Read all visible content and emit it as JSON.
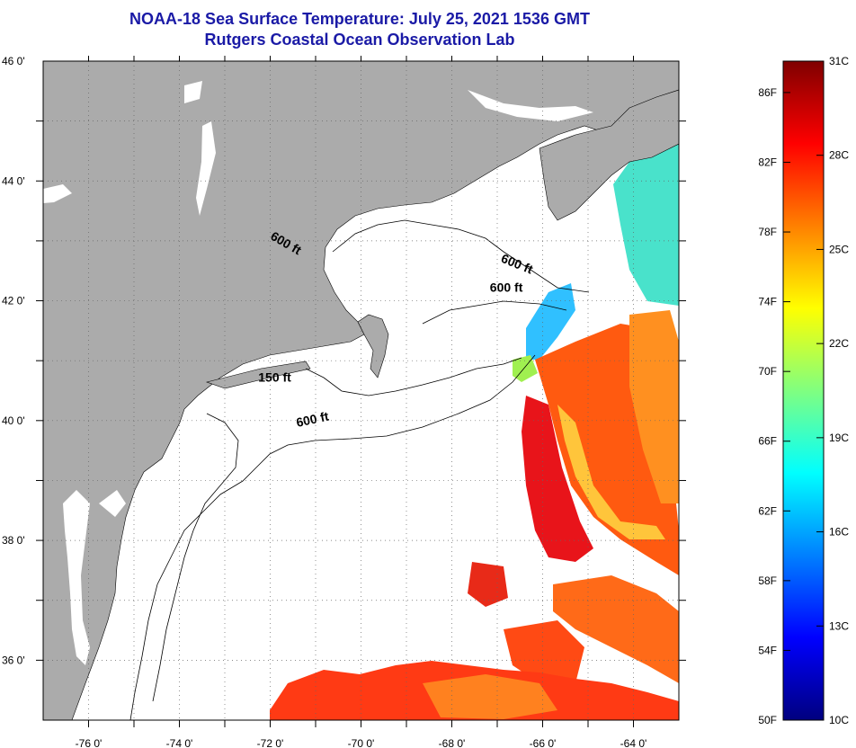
{
  "title": {
    "line1": "NOAA-18 Sea Surface Temperature:  July 25, 2021 1536 GMT",
    "line2": "Rutgers Coastal Ocean Observation Lab"
  },
  "map": {
    "lon_range": [
      -77,
      -63
    ],
    "lat_range": [
      35,
      46
    ],
    "lon_ticks": [
      {
        "value": -76,
        "label": "-76 0'"
      },
      {
        "value": -74,
        "label": "-74 0'"
      },
      {
        "value": -72,
        "label": "-72 0'"
      },
      {
        "value": -70,
        "label": "-70 0'"
      },
      {
        "value": -68,
        "label": "-68 0'"
      },
      {
        "value": -66,
        "label": "-66 0'"
      },
      {
        "value": -64,
        "label": "-64 0'"
      }
    ],
    "lat_ticks": [
      {
        "value": 46,
        "label": "46 0'"
      },
      {
        "value": 44,
        "label": "44 0'"
      },
      {
        "value": 42,
        "label": "42 0'"
      },
      {
        "value": 40,
        "label": "40 0'"
      },
      {
        "value": 38,
        "label": "38 0'"
      },
      {
        "value": 36,
        "label": "36 0'"
      }
    ],
    "isobath_labels": [
      {
        "text": "600 ft",
        "lon": -71.7,
        "lat": 42.9,
        "rotate": 30
      },
      {
        "text": "600 ft",
        "lon": -66.6,
        "lat": 42.55,
        "rotate": 22
      },
      {
        "text": "600 ft",
        "lon": -66.8,
        "lat": 42.15,
        "rotate": 0
      },
      {
        "text": "150 ft",
        "lon": -71.9,
        "lat": 40.65,
        "rotate": 0
      },
      {
        "text": "600 ft",
        "lon": -71.05,
        "lat": 39.95,
        "rotate": -12
      }
    ],
    "colors": {
      "land": "#ababab",
      "ocean": "#ffffff",
      "grid": "#555555"
    }
  },
  "colorbar": {
    "min_c": 10,
    "max_c": 31,
    "stops": [
      "#00007f",
      "#0000ff",
      "#0080ff",
      "#00ffff",
      "#80ff80",
      "#ffff00",
      "#ff8000",
      "#ff0000",
      "#7f0000"
    ],
    "celsius_labels": [
      {
        "value": 31,
        "label": "31C"
      },
      {
        "value": 28,
        "label": "28C"
      },
      {
        "value": 25,
        "label": "25C"
      },
      {
        "value": 22,
        "label": "22C"
      },
      {
        "value": 19,
        "label": "19C"
      },
      {
        "value": 16,
        "label": "16C"
      },
      {
        "value": 13,
        "label": "13C"
      },
      {
        "value": 10,
        "label": "10C"
      }
    ],
    "fahrenheit_labels": [
      {
        "value": 86,
        "label": "86F"
      },
      {
        "value": 82,
        "label": "82F"
      },
      {
        "value": 78,
        "label": "78F"
      },
      {
        "value": 74,
        "label": "74F"
      },
      {
        "value": 70,
        "label": "70F"
      },
      {
        "value": 66,
        "label": "66F"
      },
      {
        "value": 62,
        "label": "62F"
      },
      {
        "value": 58,
        "label": "58F"
      },
      {
        "value": 54,
        "label": "54F"
      },
      {
        "value": 50,
        "label": "50F"
      }
    ]
  }
}
